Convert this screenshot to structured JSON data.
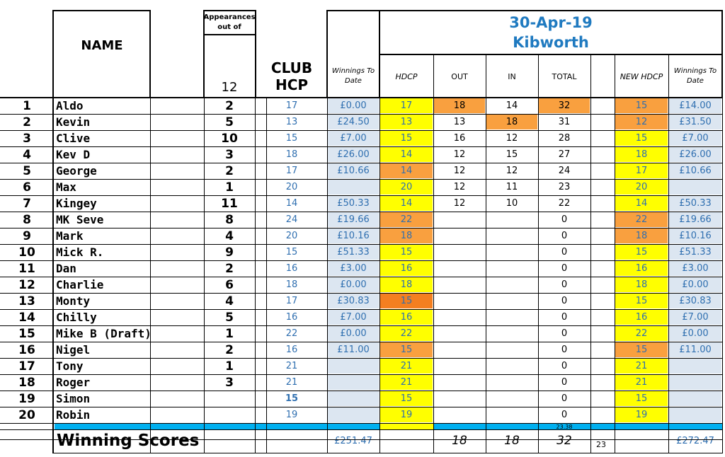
{
  "header": {
    "name_label": "NAME",
    "appearances_label": "Appearances out of",
    "appearances_total": "12",
    "club_hcp_label": "CLUB HCP",
    "winnings_label": "Winnings To Date",
    "date": "30-Apr-19",
    "course": "Kibworth",
    "hdcp_label": "HDCP",
    "out_label": "OUT",
    "in_label": "IN",
    "total_label": "TOTAL",
    "new_hdcp_label": "NEW HDCP",
    "winnings2_label": "Winnings To Date"
  },
  "colors": {
    "yellow": "#ffff00",
    "orange": "#f9a03f",
    "dark_orange": "#f47f20",
    "light_blue": "#dce6f1",
    "cyan_bar": "#00b0f0",
    "title_blue": "#1f7ac0"
  },
  "rows": [
    {
      "num": "1",
      "name": "Aldo",
      "app": "2",
      "club": "17",
      "win": "£0.00",
      "hdcp": "17",
      "hdcp_color": "yellow",
      "out": "18",
      "out_color": "orange",
      "in": "14",
      "in_color": "",
      "total": "32",
      "total_color": "orange",
      "new": "15",
      "new_color": "orange",
      "win2": "£14.00"
    },
    {
      "num": "2",
      "name": "Kevin",
      "app": "5",
      "club": "13",
      "win": "£24.50",
      "hdcp": "13",
      "hdcp_color": "yellow",
      "out": "13",
      "out_color": "",
      "in": "18",
      "in_color": "orange",
      "total": "31",
      "total_color": "",
      "new": "12",
      "new_color": "orange",
      "win2": "£31.50"
    },
    {
      "num": "3",
      "name": "Clive",
      "app": "10",
      "club": "15",
      "win": "£7.00",
      "hdcp": "15",
      "hdcp_color": "yellow",
      "out": "16",
      "out_color": "",
      "in": "12",
      "in_color": "",
      "total": "28",
      "total_color": "",
      "new": "15",
      "new_color": "yellow",
      "win2": "£7.00"
    },
    {
      "num": "4",
      "name": "Kev D",
      "app": "3",
      "club": "18",
      "win": "£26.00",
      "hdcp": "14",
      "hdcp_color": "yellow",
      "out": "12",
      "out_color": "",
      "in": "15",
      "in_color": "",
      "total": "27",
      "total_color": "",
      "new": "18",
      "new_color": "yellow",
      "win2": "£26.00"
    },
    {
      "num": "5",
      "name": "George",
      "app": "2",
      "club": "17",
      "win": "£10.66",
      "hdcp": "14",
      "hdcp_color": "orange",
      "out": "12",
      "out_color": "",
      "in": "12",
      "in_color": "",
      "total": "24",
      "total_color": "",
      "new": "17",
      "new_color": "yellow",
      "win2": "£10.66"
    },
    {
      "num": "6",
      "name": "Max",
      "app": "1",
      "club": "20",
      "win": "",
      "hdcp": "20",
      "hdcp_color": "yellow",
      "out": "12",
      "out_color": "",
      "in": "11",
      "in_color": "",
      "total": "23",
      "total_color": "",
      "new": "20",
      "new_color": "yellow",
      "win2": ""
    },
    {
      "num": "7",
      "name": "Kingey",
      "app": "11",
      "club": "14",
      "win": "£50.33",
      "hdcp": "14",
      "hdcp_color": "yellow",
      "out": "12",
      "out_color": "",
      "in": "10",
      "in_color": "",
      "total": "22",
      "total_color": "",
      "new": "14",
      "new_color": "yellow",
      "win2": "£50.33"
    },
    {
      "num": "8",
      "name": "MK Seve",
      "app": "8",
      "club": "24",
      "win": "£19.66",
      "hdcp": "22",
      "hdcp_color": "orange",
      "out": "",
      "out_color": "",
      "in": "",
      "in_color": "",
      "total": "0",
      "total_color": "",
      "new": "22",
      "new_color": "orange",
      "win2": "£19.66"
    },
    {
      "num": "9",
      "name": "Mark",
      "app": "4",
      "club": "20",
      "win": "£10.16",
      "hdcp": "18",
      "hdcp_color": "orange",
      "out": "",
      "out_color": "",
      "in": "",
      "in_color": "",
      "total": "0",
      "total_color": "",
      "new": "18",
      "new_color": "orange",
      "win2": "£10.16"
    },
    {
      "num": "10",
      "name": "Mick R.",
      "app": "9",
      "club": "15",
      "win": "£51.33",
      "hdcp": "15",
      "hdcp_color": "yellow",
      "out": "",
      "out_color": "",
      "in": "",
      "in_color": "",
      "total": "0",
      "total_color": "",
      "new": "15",
      "new_color": "yellow",
      "win2": "£51.33"
    },
    {
      "num": "11",
      "name": "Dan",
      "app": "2",
      "club": "16",
      "win": "£3.00",
      "hdcp": "16",
      "hdcp_color": "yellow",
      "out": "",
      "out_color": "",
      "in": "",
      "in_color": "",
      "total": "0",
      "total_color": "",
      "new": "16",
      "new_color": "yellow",
      "win2": "£3.00"
    },
    {
      "num": "12",
      "name": "Charlie",
      "app": "6",
      "club": "18",
      "win": "£0.00",
      "hdcp": "18",
      "hdcp_color": "yellow",
      "out": "",
      "out_color": "",
      "in": "",
      "in_color": "",
      "total": "0",
      "total_color": "",
      "new": "18",
      "new_color": "yellow",
      "win2": "£0.00"
    },
    {
      "num": "13",
      "name": "Monty",
      "app": "4",
      "club": "17",
      "win": "£30.83",
      "hdcp": "15",
      "hdcp_color": "dark_orange",
      "out": "",
      "out_color": "",
      "in": "",
      "in_color": "",
      "total": "0",
      "total_color": "",
      "new": "15",
      "new_color": "yellow",
      "win2": "£30.83"
    },
    {
      "num": "14",
      "name": "Chilly",
      "app": "5",
      "club": "16",
      "win": "£7.00",
      "hdcp": "16",
      "hdcp_color": "yellow",
      "out": "",
      "out_color": "",
      "in": "",
      "in_color": "",
      "total": "0",
      "total_color": "",
      "new": "16",
      "new_color": "yellow",
      "win2": "£7.00"
    },
    {
      "num": "15",
      "name": "Mike B (Draft)",
      "app": "1",
      "club": "22",
      "win": "£0.00",
      "hdcp": "22",
      "hdcp_color": "yellow",
      "out": "",
      "out_color": "",
      "in": "",
      "in_color": "",
      "total": "0",
      "total_color": "",
      "new": "22",
      "new_color": "yellow",
      "win2": "£0.00"
    },
    {
      "num": "16",
      "name": "Nigel",
      "app": "2",
      "club": "16",
      "win": "£11.00",
      "hdcp": "15",
      "hdcp_color": "orange",
      "out": "",
      "out_color": "",
      "in": "",
      "in_color": "",
      "total": "0",
      "total_color": "",
      "new": "15",
      "new_color": "orange",
      "win2": "£11.00"
    },
    {
      "num": "17",
      "name": "Tony",
      "app": "1",
      "club": "21",
      "win": "",
      "hdcp": "21",
      "hdcp_color": "yellow",
      "out": "",
      "out_color": "",
      "in": "",
      "in_color": "",
      "total": "0",
      "total_color": "",
      "new": "21",
      "new_color": "yellow",
      "win2": ""
    },
    {
      "num": "18",
      "name": "Roger",
      "app": "3",
      "club": "21",
      "win": "",
      "hdcp": "21",
      "hdcp_color": "yellow",
      "out": "",
      "out_color": "",
      "in": "",
      "in_color": "",
      "total": "0",
      "total_color": "",
      "new": "21",
      "new_color": "yellow",
      "win2": ""
    },
    {
      "num": "19",
      "name": "Simon",
      "app": "",
      "club": "15",
      "win": "",
      "hdcp": "15",
      "hdcp_color": "yellow",
      "out": "",
      "out_color": "",
      "in": "",
      "in_color": "",
      "total": "0",
      "total_color": "",
      "new": "15",
      "new_color": "yellow",
      "win2": ""
    },
    {
      "num": "20",
      "name": "Robin",
      "app": "",
      "club": "19",
      "win": "",
      "hdcp": "19",
      "hdcp_color": "yellow",
      "out": "",
      "out_color": "",
      "in": "",
      "in_color": "",
      "total": "0",
      "total_color": "",
      "new": "19",
      "new_color": "yellow",
      "win2": ""
    }
  ],
  "bar_total": "23.38",
  "footer": {
    "label": "Winning Scores",
    "win": "£251.47",
    "out": "18",
    "in": "18",
    "total": "32",
    "extra": "23",
    "win2": "£272.47"
  }
}
